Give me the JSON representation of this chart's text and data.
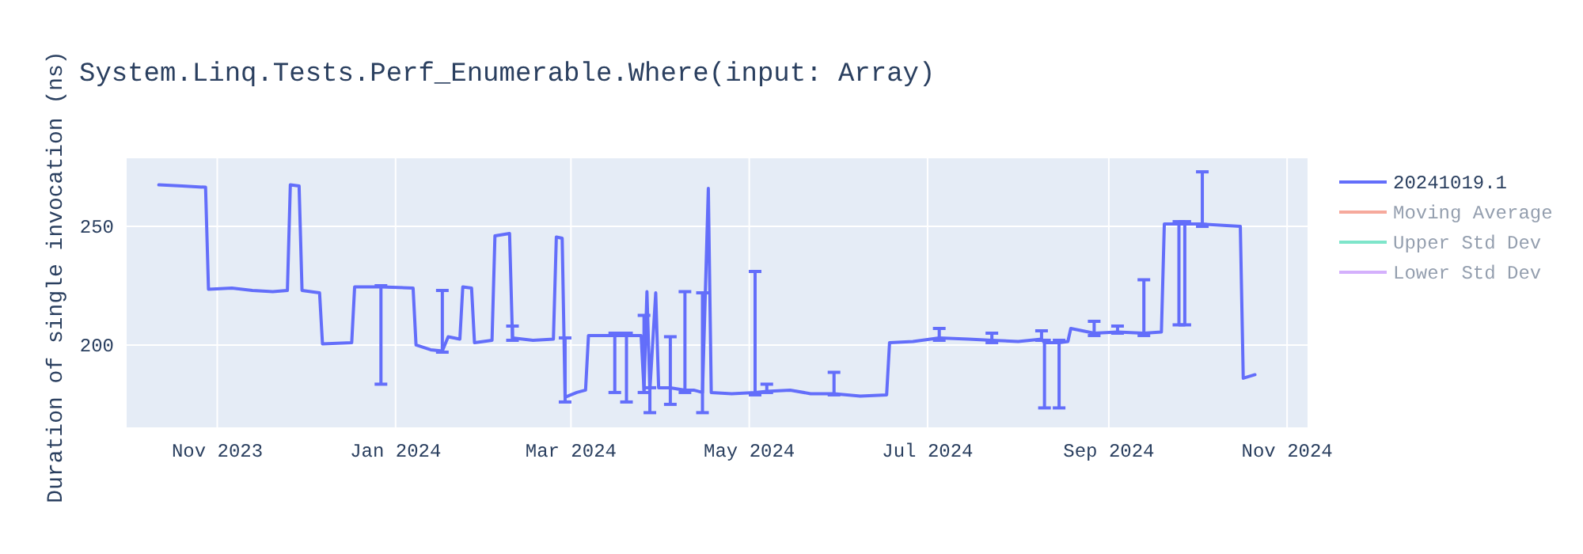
{
  "chart_data": {
    "type": "line",
    "title": "System.Linq.Tests.Perf_Enumerable.Where(input: Array)",
    "ylabel": "Duration of single invocation (ns)",
    "xlim": [
      "2023-10-01",
      "2024-11-08"
    ],
    "xticks": [
      {
        "value": "2023-11-01",
        "label": "Nov 2023"
      },
      {
        "value": "2024-01-01",
        "label": "Jan 2024"
      },
      {
        "value": "2024-03-01",
        "label": "Mar 2024"
      },
      {
        "value": "2024-05-01",
        "label": "May 2024"
      },
      {
        "value": "2024-07-01",
        "label": "Jul 2024"
      },
      {
        "value": "2024-09-01",
        "label": "Sep 2024"
      },
      {
        "value": "2024-11-01",
        "label": "Nov 2024"
      }
    ],
    "ylim": [
      165.3,
      278.7
    ],
    "yticks": [
      200,
      250
    ],
    "grid": true,
    "legend": "top right",
    "series": [
      {
        "name": "20241019.1",
        "color": "#636efa",
        "x": [
          "2023-10-12",
          "2023-10-20",
          "2023-10-28",
          "2023-10-29",
          "2023-11-06",
          "2023-11-13",
          "2023-11-20",
          "2023-11-25",
          "2023-11-26",
          "2023-11-29",
          "2023-11-30",
          "2023-12-06",
          "2023-12-07",
          "2023-12-17",
          "2023-12-18",
          "2023-12-27",
          "2024-01-07",
          "2024-01-08",
          "2024-01-13",
          "2024-01-17",
          "2024-01-19",
          "2024-01-23",
          "2024-01-24",
          "2024-01-27",
          "2024-01-28",
          "2024-02-03",
          "2024-02-04",
          "2024-02-09",
          "2024-02-10",
          "2024-02-17",
          "2024-02-24",
          "2024-02-25",
          "2024-02-27",
          "2024-02-28",
          "2024-03-03",
          "2024-03-06",
          "2024-03-07",
          "2024-03-16",
          "2024-03-20",
          "2024-03-25",
          "2024-03-26",
          "2024-03-27",
          "2024-03-28",
          "2024-03-30",
          "2024-03-31",
          "2024-04-04",
          "2024-04-09",
          "2024-04-12",
          "2024-04-15",
          "2024-04-17",
          "2024-04-18",
          "2024-04-25",
          "2024-05-03",
          "2024-05-07",
          "2024-05-15",
          "2024-05-22",
          "2024-05-30",
          "2024-06-08",
          "2024-06-17",
          "2024-06-18",
          "2024-06-26",
          "2024-07-05",
          "2024-07-15",
          "2024-07-23",
          "2024-08-01",
          "2024-08-09",
          "2024-08-10",
          "2024-08-15",
          "2024-08-18",
          "2024-08-19",
          "2024-08-27",
          "2024-09-04",
          "2024-09-13",
          "2024-09-19",
          "2024-09-20",
          "2024-09-25",
          "2024-09-27",
          "2024-10-03",
          "2024-10-09",
          "2024-10-16",
          "2024-10-17",
          "2024-10-21"
        ],
        "values": [
          267.5,
          267,
          266.5,
          223.5,
          224,
          223,
          222.5,
          223,
          267.5,
          267,
          223,
          222,
          200.5,
          201,
          224.5,
          224.5,
          224,
          200,
          198,
          197.5,
          203.5,
          202.5,
          224.5,
          224,
          201,
          202,
          246,
          247,
          203,
          202,
          202.5,
          245.5,
          245,
          178,
          180,
          181,
          204,
          204,
          204,
          204,
          181,
          222.5,
          181,
          222,
          182,
          182,
          181,
          181,
          180,
          266,
          180,
          179.5,
          180,
          180.5,
          181,
          179.5,
          179.5,
          178.5,
          179,
          201,
          201.5,
          203,
          202.5,
          202,
          201.5,
          202.5,
          201,
          201,
          201.5,
          207,
          205,
          205.5,
          205,
          205.5,
          251,
          251,
          251,
          251,
          250.5,
          250,
          186,
          187.5
        ],
        "errors": [
          null,
          null,
          null,
          null,
          null,
          null,
          null,
          null,
          null,
          null,
          null,
          null,
          null,
          null,
          null,
          [
            183.5,
            225
          ],
          null,
          null,
          null,
          [
            197,
            223
          ],
          null,
          null,
          null,
          null,
          null,
          null,
          null,
          null,
          [
            202,
            208
          ],
          null,
          null,
          null,
          null,
          [
            176,
            203
          ],
          null,
          null,
          null,
          [
            180,
            205
          ],
          [
            176,
            205
          ],
          null,
          [
            180,
            212.5
          ],
          null,
          [
            171.5,
            182
          ],
          null,
          null,
          [
            175,
            203.5
          ],
          [
            180,
            222.5
          ],
          null,
          [
            171.5,
            222
          ],
          null,
          null,
          null,
          [
            179,
            231
          ],
          [
            180,
            183.5
          ],
          null,
          null,
          [
            179,
            188.5
          ],
          null,
          null,
          null,
          null,
          [
            202,
            207
          ],
          null,
          [
            201,
            205
          ],
          null,
          [
            202,
            206
          ],
          [
            173.5,
            202
          ],
          [
            173.5,
            202
          ],
          null,
          null,
          [
            204,
            210
          ],
          [
            205,
            208
          ],
          [
            204,
            227.5
          ],
          null,
          null,
          [
            208.5,
            252
          ],
          [
            208.5,
            252
          ],
          [
            250,
            273
          ],
          null,
          null,
          null,
          null
        ]
      },
      {
        "name": "Moving Average",
        "color": "#ef553b"
      },
      {
        "name": "Upper Std Dev",
        "color": "#00cc96"
      },
      {
        "name": "Lower Std Dev",
        "color": "#ab63fa"
      }
    ]
  }
}
